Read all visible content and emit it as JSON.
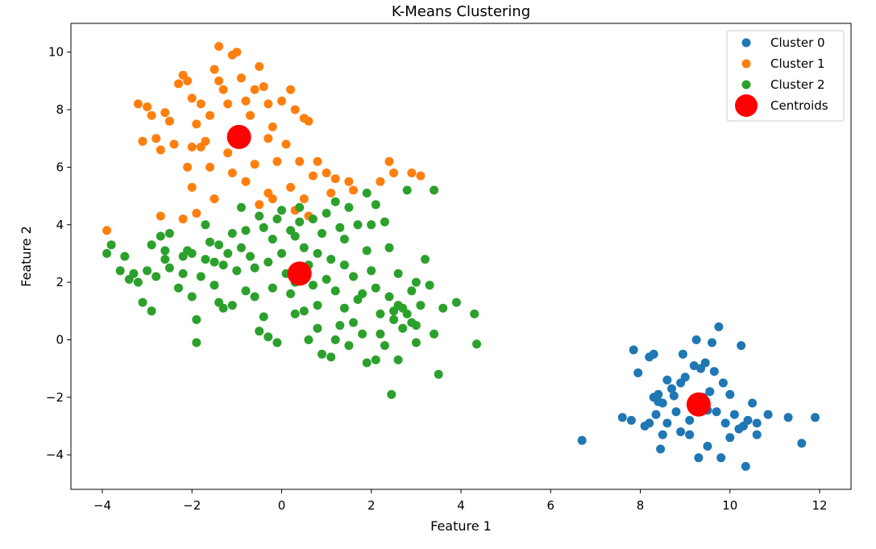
{
  "chart_data": {
    "type": "scatter",
    "title": "K-Means Clustering",
    "xlabel": "Feature 1",
    "ylabel": "Feature 2",
    "xlim": [
      -4.7,
      12.7
    ],
    "ylim": [
      -5.2,
      11.0
    ],
    "xticks": [
      -4,
      -2,
      0,
      2,
      4,
      6,
      8,
      10,
      12
    ],
    "yticks": [
      -4,
      -2,
      0,
      2,
      4,
      6,
      8,
      10
    ],
    "grid": false,
    "legend_position": "top-right",
    "series": [
      {
        "name": "Cluster 0",
        "color": "#1f77b4",
        "points": [
          [
            6.7,
            -3.5
          ],
          [
            7.6,
            -2.7
          ],
          [
            7.8,
            -2.8
          ],
          [
            7.85,
            -0.35
          ],
          [
            7.95,
            -1.15
          ],
          [
            8.2,
            -0.6
          ],
          [
            8.3,
            -0.5
          ],
          [
            8.4,
            -1.9
          ],
          [
            8.35,
            -2.6
          ],
          [
            8.45,
            -3.8
          ],
          [
            8.5,
            -2.2
          ],
          [
            8.6,
            -1.4
          ],
          [
            8.7,
            -1.7
          ],
          [
            8.8,
            -2.5
          ],
          [
            8.9,
            -1.5
          ],
          [
            9.0,
            -1.3
          ],
          [
            9.1,
            -2.8
          ],
          [
            9.2,
            -0.9
          ],
          [
            9.25,
            0.0
          ],
          [
            9.35,
            -1.0
          ],
          [
            9.45,
            -0.8
          ],
          [
            9.55,
            -1.8
          ],
          [
            9.6,
            -0.1
          ],
          [
            9.75,
            0.45
          ],
          [
            9.85,
            -1.5
          ],
          [
            10.0,
            -1.9
          ],
          [
            10.1,
            -2.6
          ],
          [
            10.25,
            -0.2
          ],
          [
            10.3,
            -3.0
          ],
          [
            10.35,
            -4.4
          ],
          [
            10.5,
            -2.2
          ],
          [
            10.6,
            -2.9
          ],
          [
            10.85,
            -2.6
          ],
          [
            11.3,
            -2.7
          ],
          [
            11.6,
            -3.6
          ],
          [
            11.9,
            -2.7
          ],
          [
            9.3,
            -4.1
          ],
          [
            9.5,
            -3.7
          ],
          [
            9.8,
            -4.1
          ],
          [
            8.5,
            -3.3
          ],
          [
            8.9,
            -3.2
          ],
          [
            9.1,
            -3.3
          ],
          [
            10.0,
            -3.4
          ],
          [
            10.6,
            -3.3
          ],
          [
            8.2,
            -2.9
          ],
          [
            8.1,
            -3.0
          ],
          [
            8.6,
            -2.9
          ],
          [
            8.75,
            -1.95
          ],
          [
            9.2,
            -2.05
          ],
          [
            9.7,
            -2.5
          ],
          [
            9.9,
            -2.9
          ],
          [
            10.2,
            -3.1
          ],
          [
            10.4,
            -2.8
          ],
          [
            9.65,
            -1.1
          ],
          [
            8.95,
            -0.5
          ],
          [
            8.3,
            -2.0
          ],
          [
            8.4,
            -2.15
          ],
          [
            9.5,
            -2.45
          ],
          [
            9.4,
            -2.0
          ]
        ]
      },
      {
        "name": "Cluster 1",
        "color": "#ff7f0e",
        "points": [
          [
            -3.9,
            3.8
          ],
          [
            -3.2,
            8.2
          ],
          [
            -3.0,
            8.1
          ],
          [
            -2.9,
            7.8
          ],
          [
            -2.7,
            6.6
          ],
          [
            -2.6,
            7.9
          ],
          [
            -2.5,
            7.6
          ],
          [
            -2.3,
            8.9
          ],
          [
            -2.2,
            9.2
          ],
          [
            -2.1,
            9.0
          ],
          [
            -2.0,
            8.4
          ],
          [
            -1.9,
            7.5
          ],
          [
            -1.8,
            8.2
          ],
          [
            -1.7,
            6.9
          ],
          [
            -1.6,
            7.8
          ],
          [
            -1.5,
            9.4
          ],
          [
            -1.4,
            9.0
          ],
          [
            -1.3,
            8.7
          ],
          [
            -1.2,
            8.2
          ],
          [
            -1.1,
            9.9
          ],
          [
            -1.0,
            10.0
          ],
          [
            -0.9,
            9.1
          ],
          [
            -0.8,
            8.3
          ],
          [
            -0.7,
            7.8
          ],
          [
            -0.6,
            8.7
          ],
          [
            -0.5,
            9.5
          ],
          [
            -0.4,
            8.8
          ],
          [
            -0.3,
            8.2
          ],
          [
            -0.2,
            7.4
          ],
          [
            0.0,
            8.3
          ],
          [
            0.2,
            8.7
          ],
          [
            0.3,
            8.0
          ],
          [
            0.5,
            7.7
          ],
          [
            0.6,
            7.6
          ],
          [
            -1.4,
            10.2
          ],
          [
            -2.1,
            6.0
          ],
          [
            -1.8,
            6.7
          ],
          [
            -1.2,
            6.5
          ],
          [
            -0.8,
            5.5
          ],
          [
            -0.5,
            4.7
          ],
          [
            -0.3,
            5.1
          ],
          [
            0.2,
            5.3
          ],
          [
            0.5,
            4.9
          ],
          [
            0.8,
            6.2
          ],
          [
            1.0,
            5.8
          ],
          [
            1.2,
            5.6
          ],
          [
            1.5,
            5.5
          ],
          [
            1.6,
            5.2
          ],
          [
            2.2,
            5.5
          ],
          [
            2.4,
            6.2
          ],
          [
            2.5,
            5.8
          ],
          [
            2.9,
            5.8
          ],
          [
            3.1,
            5.7
          ],
          [
            -2.7,
            4.3
          ],
          [
            -2.2,
            4.2
          ],
          [
            -2.0,
            5.3
          ],
          [
            -1.5,
            4.9
          ],
          [
            -1.9,
            4.4
          ],
          [
            0.7,
            5.7
          ],
          [
            -0.1,
            6.2
          ],
          [
            -0.6,
            6.1
          ],
          [
            -3.1,
            6.9
          ],
          [
            -2.8,
            7.0
          ],
          [
            -2.4,
            6.8
          ],
          [
            -2.0,
            6.7
          ],
          [
            -1.0,
            7.0
          ],
          [
            -0.3,
            7.0
          ],
          [
            0.1,
            6.8
          ],
          [
            0.4,
            6.2
          ],
          [
            1.1,
            5.1
          ],
          [
            -0.2,
            4.9
          ],
          [
            0.3,
            4.5
          ],
          [
            0.6,
            4.3
          ],
          [
            -1.1,
            5.8
          ],
          [
            -1.6,
            6.0
          ]
        ]
      },
      {
        "name": "Cluster 2",
        "color": "#2ca02c",
        "points": [
          [
            -3.9,
            3.0
          ],
          [
            -3.8,
            3.3
          ],
          [
            -3.6,
            2.4
          ],
          [
            -3.4,
            2.1
          ],
          [
            -3.2,
            2.0
          ],
          [
            -3.1,
            1.3
          ],
          [
            -2.9,
            1.0
          ],
          [
            -2.8,
            2.2
          ],
          [
            -2.7,
            3.6
          ],
          [
            -2.6,
            3.1
          ],
          [
            -2.5,
            2.5
          ],
          [
            -2.3,
            1.8
          ],
          [
            -2.2,
            2.9
          ],
          [
            -2.1,
            3.1
          ],
          [
            -2.0,
            1.5
          ],
          [
            -1.9,
            0.7
          ],
          [
            -1.8,
            2.2
          ],
          [
            -1.7,
            2.8
          ],
          [
            -1.6,
            3.4
          ],
          [
            -1.5,
            1.9
          ],
          [
            -1.4,
            1.3
          ],
          [
            -1.3,
            2.6
          ],
          [
            -1.2,
            3.0
          ],
          [
            -1.1,
            3.7
          ],
          [
            -1.0,
            2.4
          ],
          [
            -0.9,
            3.2
          ],
          [
            -0.8,
            3.8
          ],
          [
            -0.7,
            2.9
          ],
          [
            -0.6,
            1.5
          ],
          [
            -0.5,
            4.3
          ],
          [
            -0.4,
            3.9
          ],
          [
            -0.3,
            2.7
          ],
          [
            -0.2,
            3.5
          ],
          [
            -0.1,
            4.2
          ],
          [
            0.0,
            3.0
          ],
          [
            0.1,
            2.3
          ],
          [
            0.2,
            1.6
          ],
          [
            0.3,
            3.6
          ],
          [
            0.4,
            4.1
          ],
          [
            0.5,
            3.2
          ],
          [
            0.6,
            2.6
          ],
          [
            0.7,
            1.9
          ],
          [
            0.8,
            1.2
          ],
          [
            0.9,
            3.7
          ],
          [
            1.0,
            4.4
          ],
          [
            1.1,
            2.8
          ],
          [
            1.2,
            1.7
          ],
          [
            1.3,
            0.5
          ],
          [
            1.4,
            3.5
          ],
          [
            1.5,
            4.6
          ],
          [
            1.6,
            2.2
          ],
          [
            1.7,
            1.4
          ],
          [
            1.8,
            0.2
          ],
          [
            1.9,
            3.1
          ],
          [
            2.0,
            4.0
          ],
          [
            2.1,
            1.8
          ],
          [
            2.2,
            0.9
          ],
          [
            2.3,
            -0.2
          ],
          [
            2.4,
            1.5
          ],
          [
            2.5,
            0.7
          ],
          [
            2.6,
            1.2
          ],
          [
            2.7,
            0.4
          ],
          [
            2.8,
            0.9
          ],
          [
            2.9,
            1.7
          ],
          [
            3.0,
            0.5
          ],
          [
            3.1,
            1.2
          ],
          [
            3.2,
            2.8
          ],
          [
            3.4,
            0.2
          ],
          [
            3.5,
            -1.2
          ],
          [
            3.6,
            1.1
          ],
          [
            3.9,
            1.3
          ],
          [
            4.3,
            0.9
          ],
          [
            4.35,
            -0.15
          ],
          [
            2.45,
            -1.9
          ],
          [
            -1.9,
            -0.1
          ],
          [
            -0.1,
            -0.1
          ],
          [
            -0.5,
            0.3
          ],
          [
            0.3,
            0.9
          ],
          [
            0.8,
            0.4
          ],
          [
            1.1,
            -0.6
          ],
          [
            1.5,
            -0.2
          ],
          [
            1.9,
            -0.8
          ],
          [
            2.1,
            -0.7
          ],
          [
            2.6,
            -0.7
          ],
          [
            2.8,
            5.2
          ],
          [
            3.4,
            5.2
          ],
          [
            2.3,
            4.1
          ],
          [
            2.1,
            4.7
          ],
          [
            1.9,
            5.1
          ],
          [
            1.2,
            4.8
          ],
          [
            0.4,
            4.6
          ],
          [
            -1.7,
            4.0
          ],
          [
            -2.5,
            3.7
          ],
          [
            -3.3,
            2.3
          ],
          [
            -3.0,
            2.4
          ],
          [
            -2.2,
            2.3
          ],
          [
            -1.5,
            2.7
          ],
          [
            -0.8,
            1.7
          ],
          [
            -0.3,
            0.1
          ],
          [
            0.6,
            0.0
          ],
          [
            1.4,
            1.1
          ],
          [
            1.8,
            1.6
          ],
          [
            2.2,
            0.2
          ],
          [
            2.9,
            0.6
          ],
          [
            3.0,
            -0.1
          ],
          [
            1.0,
            2.1
          ],
          [
            0.3,
            2.0
          ],
          [
            -0.6,
            2.5
          ],
          [
            -1.3,
            1.1
          ],
          [
            -2.6,
            2.8
          ],
          [
            -2.9,
            3.3
          ],
          [
            -3.5,
            2.9
          ],
          [
            0.8,
            3.0
          ],
          [
            1.3,
            3.9
          ],
          [
            1.7,
            4.0
          ],
          [
            2.4,
            3.2
          ],
          [
            0.0,
            4.5
          ],
          [
            -0.9,
            4.6
          ],
          [
            -1.4,
            3.3
          ],
          [
            -2.0,
            3.0
          ],
          [
            0.5,
            1.0
          ],
          [
            1.6,
            0.6
          ],
          [
            2.5,
            1.0
          ],
          [
            3.3,
            1.9
          ],
          [
            2.7,
            1.1
          ],
          [
            1.2,
            0.0
          ],
          [
            0.9,
            -0.5
          ],
          [
            -0.4,
            0.8
          ],
          [
            -1.1,
            1.2
          ],
          [
            -0.2,
            1.8
          ],
          [
            0.2,
            3.8
          ],
          [
            0.7,
            4.2
          ],
          [
            1.4,
            2.6
          ],
          [
            2.0,
            2.4
          ],
          [
            2.6,
            2.3
          ],
          [
            3.0,
            2.0
          ]
        ]
      }
    ],
    "centroids": {
      "name": "Centroids",
      "color": "#ff0000",
      "points": [
        [
          -0.95,
          7.05
        ],
        [
          0.4,
          2.3
        ],
        [
          9.3,
          -2.25
        ]
      ]
    }
  }
}
